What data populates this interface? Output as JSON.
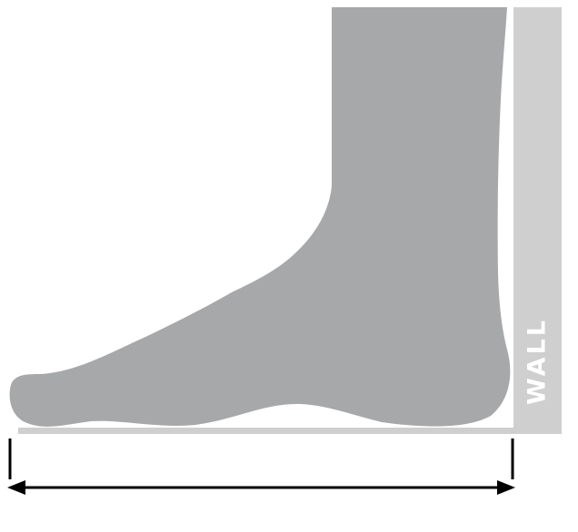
{
  "diagram": {
    "wall_label": "WALL",
    "colors": {
      "background": "#ffffff",
      "foot": "#a7a8aa",
      "wall": "#cfcfd0",
      "floor": "#cfcfd0",
      "wall_text": "#ffffff",
      "arrow": "#000000"
    },
    "icons": {
      "foot": "foot-silhouette-icon",
      "measure": "double-headed-arrow-icon"
    }
  }
}
